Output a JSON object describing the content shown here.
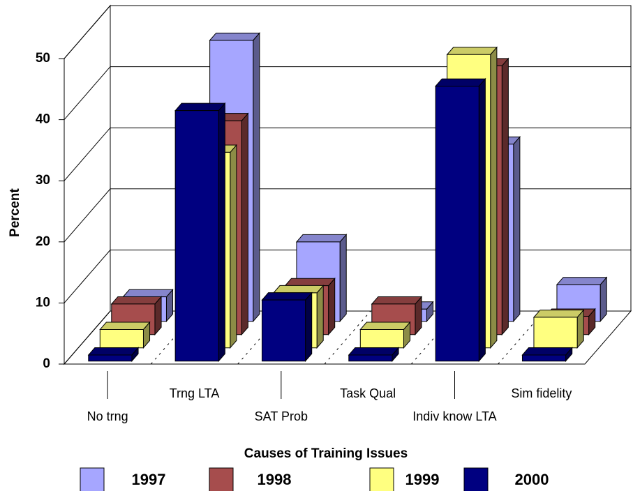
{
  "chart_data": {
    "type": "bar3d",
    "x_label": "Causes of Training Issues",
    "y_label": "Percent",
    "categories": [
      "No trng",
      "Trng LTA",
      "SAT Prob",
      "Task Qual",
      "Indiv know LTA",
      "Sim fidelity"
    ],
    "series": [
      {
        "name": "1997",
        "color": "#a6a6ff",
        "values": [
          4,
          46,
          13,
          2,
          29,
          6
        ]
      },
      {
        "name": "1998",
        "color": "#a64d4d",
        "values": [
          5,
          35,
          8,
          5,
          44,
          3
        ]
      },
      {
        "name": "1999",
        "color": "#ffff80",
        "values": [
          3,
          32,
          9,
          3,
          48,
          5
        ]
      },
      {
        "name": "2000",
        "color": "#000080",
        "values": [
          1,
          41,
          10,
          1,
          45,
          1
        ]
      }
    ],
    "ylim": [
      0,
      50
    ],
    "yticks": [
      0,
      10,
      20,
      30,
      40,
      50
    ],
    "grid": true,
    "legend": "bottom"
  }
}
